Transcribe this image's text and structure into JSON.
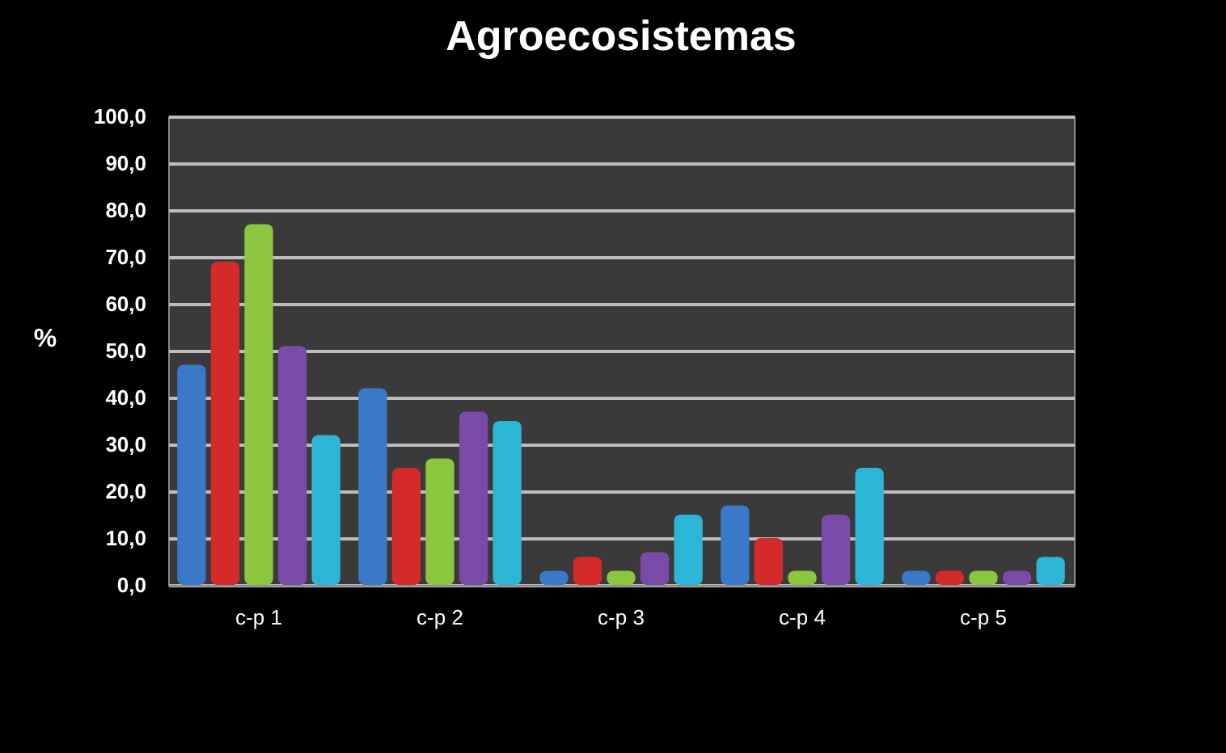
{
  "chart_data": {
    "type": "bar",
    "title": "Agroecosistemas",
    "ylabel": "%",
    "categories": [
      "c-p 1",
      "c-p 2",
      "c-p 3",
      "c-p 4",
      "c-p 5"
    ],
    "series": [
      {
        "color": "#3a78c8",
        "values": [
          47,
          42,
          3,
          17,
          3
        ]
      },
      {
        "color": "#d42a2a",
        "values": [
          69,
          25,
          6,
          10,
          3
        ]
      },
      {
        "color": "#8cc63f",
        "values": [
          77,
          27,
          3,
          3,
          3
        ]
      },
      {
        "color": "#7a4aa8",
        "values": [
          51,
          37,
          7,
          15,
          3
        ]
      },
      {
        "color": "#2bb5d6",
        "values": [
          32,
          35,
          15,
          25,
          6
        ]
      }
    ],
    "ylim": [
      0,
      100
    ],
    "yticks": [
      {
        "value": 0,
        "label": "0,0"
      },
      {
        "value": 10,
        "label": "10,0"
      },
      {
        "value": 20,
        "label": "20,0"
      },
      {
        "value": 30,
        "label": "30,0"
      },
      {
        "value": 40,
        "label": "40,0"
      },
      {
        "value": 50,
        "label": "50,0"
      },
      {
        "value": 60,
        "label": "60,0"
      },
      {
        "value": 70,
        "label": "70,0"
      },
      {
        "value": 80,
        "label": "80,0"
      },
      {
        "value": 90,
        "label": "90,0"
      },
      {
        "value": 100,
        "label": "100,0"
      }
    ],
    "grid": "y",
    "legend": false
  }
}
